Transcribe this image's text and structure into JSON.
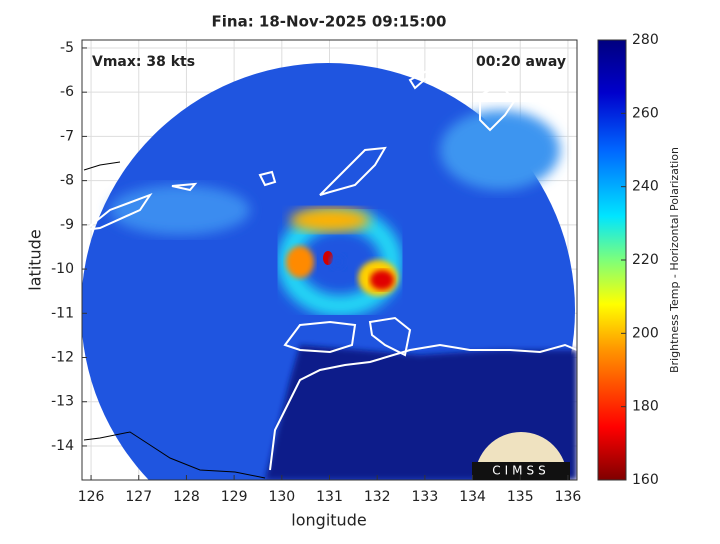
{
  "chart_data": {
    "type": "map",
    "title": "Fina: 18-Nov-2025 09:15:00",
    "annotations": [
      "Vmax: 38 kts",
      "00:20 away"
    ],
    "xlabel": "longitude",
    "ylabel": "latitude",
    "xlim": [
      125.81,
      136.19
    ],
    "xticks": [
      126,
      127,
      128,
      129,
      130,
      131,
      132,
      133,
      134,
      135,
      136
    ],
    "ylim": [
      -14.77,
      -4.82
    ],
    "yticks": [
      -5,
      -6,
      -7,
      -8,
      -9,
      -10,
      -11,
      -12,
      -13,
      -14
    ],
    "grid": true,
    "colorbar": {
      "label": "Brightness Temp - Horizontal Polarization",
      "lim": [
        160,
        280
      ],
      "ticks": [
        160,
        180,
        200,
        220,
        240,
        260,
        280
      ]
    },
    "logo": "CIMSS"
  }
}
